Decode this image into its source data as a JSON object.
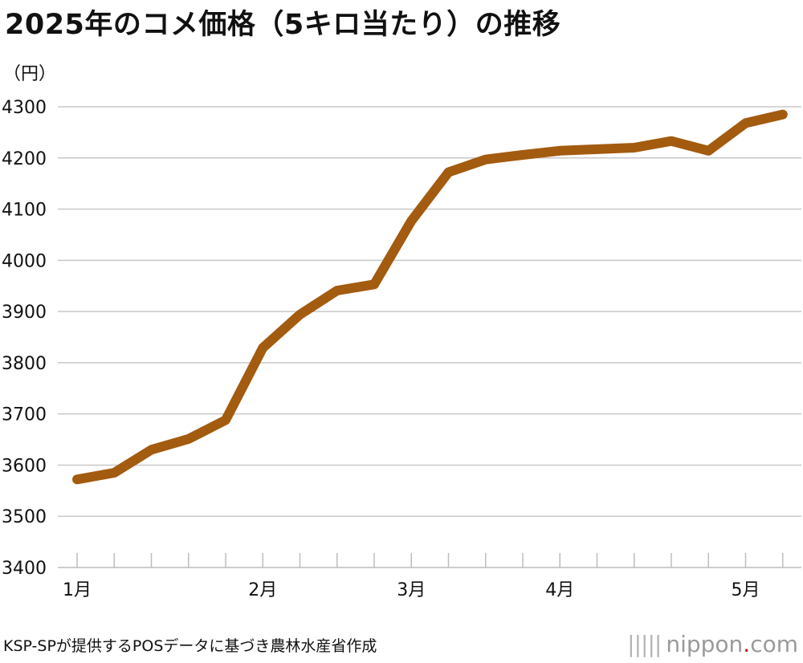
{
  "title": "2025年のコメ価格（5キロ当たり）の推移",
  "unit_label": "（円）",
  "source": "KSP-SPが提供するPOSデータに基づき農林水産省作成",
  "brand": {
    "name": "nippon",
    "dot": ".",
    "suffix": "com",
    "bars_glyph": "|||||"
  },
  "colors": {
    "line": "#a35b0f",
    "grid": "#c8c8c8",
    "brand_dot": "#d0101b"
  },
  "chart_data": {
    "type": "line",
    "title": "2025年のコメ価格（5キロ当たり）の推移",
    "ylabel": "（円）",
    "xlabel": "",
    "ylim": [
      3400,
      4300
    ],
    "yticks": [
      4300,
      4200,
      4100,
      4000,
      3900,
      3800,
      3700,
      3600,
      3500,
      3400
    ],
    "x_tick_count": 20,
    "month_labels": [
      {
        "label": "1月",
        "tick": 0
      },
      {
        "label": "2月",
        "tick": 5
      },
      {
        "label": "3月",
        "tick": 9
      },
      {
        "label": "4月",
        "tick": 13
      },
      {
        "label": "5月",
        "tick": 18
      }
    ],
    "grid": true,
    "legend": "none",
    "series": [
      {
        "x": [
          0,
          1,
          2,
          3,
          4,
          5,
          6,
          7,
          8,
          9,
          10,
          11,
          12,
          13,
          14,
          15,
          16,
          17,
          18,
          19
        ],
        "values": [
          3572,
          3585,
          3630,
          3651,
          3688,
          3829,
          3894,
          3941,
          3953,
          4077,
          4172,
          4197,
          4206,
          4214,
          4217,
          4220,
          4233,
          4214,
          4268,
          4285
        ]
      }
    ]
  }
}
